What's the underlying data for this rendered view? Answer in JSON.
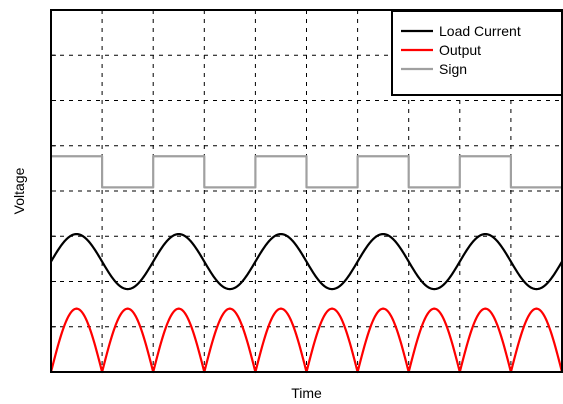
{
  "chart_data": {
    "type": "line",
    "title": "",
    "xlabel": "Time",
    "ylabel": "Voltage",
    "xlim": [
      0,
      1
    ],
    "ylim": [
      0,
      1
    ],
    "x_ticks": [
      0.1,
      0.2,
      0.3,
      0.4,
      0.5,
      0.6,
      0.7,
      0.8,
      0.9
    ],
    "y_ticks": [
      0.125,
      0.25,
      0.375,
      0.5,
      0.625,
      0.75,
      0.875
    ],
    "grid": true,
    "legend": {
      "placement": "top-right"
    },
    "series": [
      {
        "name": "Load Current",
        "color": "#000000",
        "shape": "sine",
        "periods": 5,
        "center": 0.305,
        "amplitude": 0.076,
        "x_start": 0,
        "x_end": 1
      },
      {
        "name": "Output",
        "color": "#ff0000",
        "shape": "rectified-sine",
        "periods": 5,
        "baseline": 0,
        "amplitude": 0.175,
        "x_start": 0,
        "x_end": 1
      },
      {
        "name": "Sign",
        "color": "#a0a0a0",
        "shape": "square",
        "half_period": 0.1,
        "high": 0.596,
        "low": 0.51,
        "x_start": 0,
        "x_end": 1
      }
    ]
  }
}
